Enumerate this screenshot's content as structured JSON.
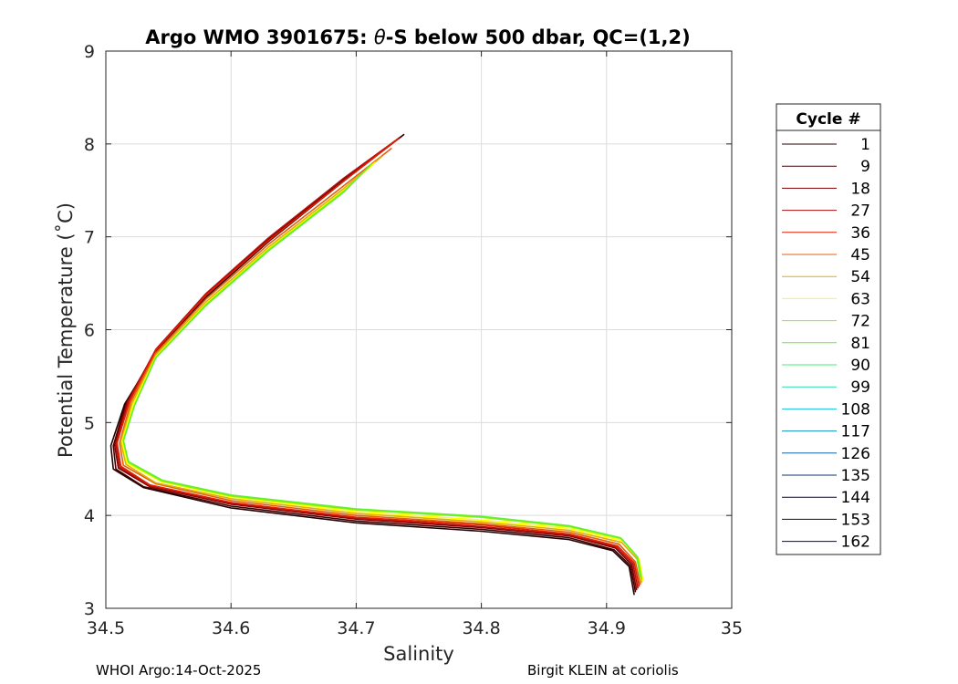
{
  "chart_data": {
    "type": "line",
    "title": "Argo WMO 3901675: θ-S below 500 dbar,  QC=(1,2)",
    "title_parts": {
      "before": "Argo WMO 3901675: ",
      "theta": "θ",
      "after": "-S below 500 dbar,  QC=(1,2)"
    },
    "xlabel": "Salinity",
    "ylabel": "Potential Temperature (˚C)",
    "xlim": [
      34.5,
      35
    ],
    "ylim": [
      3,
      9
    ],
    "xticks": [
      "34.5",
      "34.6",
      "34.7",
      "34.8",
      "34.9",
      "35"
    ],
    "yticks": [
      "3",
      "4",
      "5",
      "6",
      "7",
      "8",
      "9"
    ],
    "grid": true,
    "legend": {
      "title": "Cycle #",
      "placement": "outside-right",
      "entries": [
        "1",
        "9",
        "18",
        "27",
        "36",
        "45",
        "54",
        "63",
        "72",
        "81",
        "90",
        "99",
        "108",
        "117",
        "126",
        "135",
        "144",
        "153",
        "162"
      ],
      "colors": [
        "#200000",
        "#440000",
        "#800000",
        "#b31010",
        "#e02000",
        "#e06010",
        "#e0b000",
        "#ffff00",
        "#90f000",
        "#60f030",
        "#40f070",
        "#20e0b0",
        "#10c0e0",
        "#1090c0",
        "#1060a0",
        "#103070",
        "#100040",
        "#200020",
        "#000080"
      ]
    },
    "series": [
      {
        "name": "1",
        "color": "#200000",
        "x": [
          34.738,
          34.69,
          34.63,
          34.58,
          34.54,
          34.515,
          34.504,
          34.506,
          34.53,
          34.6,
          34.7,
          34.8,
          34.87,
          34.905,
          34.918,
          34.922
        ],
        "y": [
          8.1,
          7.6,
          6.95,
          6.35,
          5.75,
          5.2,
          4.75,
          4.5,
          4.3,
          4.08,
          3.92,
          3.83,
          3.74,
          3.62,
          3.45,
          3.15
        ]
      },
      {
        "name": "9",
        "color": "#440000",
        "x": [
          34.736,
          34.69,
          34.63,
          34.58,
          34.54,
          34.516,
          34.506,
          34.508,
          34.53,
          34.6,
          34.7,
          34.8,
          34.87,
          34.906,
          34.919,
          34.923
        ],
        "y": [
          8.08,
          7.62,
          6.97,
          6.37,
          5.77,
          5.21,
          4.75,
          4.5,
          4.31,
          4.1,
          3.94,
          3.85,
          3.76,
          3.63,
          3.46,
          3.18
        ]
      },
      {
        "name": "18",
        "color": "#800000",
        "x": [
          34.735,
          34.69,
          34.63,
          34.58,
          34.54,
          34.517,
          34.507,
          34.51,
          34.535,
          34.6,
          34.7,
          34.8,
          34.87,
          34.907,
          34.92,
          34.924
        ],
        "y": [
          8.07,
          7.63,
          6.98,
          6.38,
          5.78,
          5.22,
          4.76,
          4.51,
          4.31,
          4.12,
          3.96,
          3.87,
          3.78,
          3.65,
          3.47,
          3.2
        ]
      },
      {
        "name": "27",
        "color": "#b31010",
        "x": [
          34.734,
          34.69,
          34.63,
          34.58,
          34.54,
          34.518,
          34.508,
          34.511,
          34.535,
          34.6,
          34.7,
          34.8,
          34.87,
          34.908,
          34.921,
          34.925
        ],
        "y": [
          8.06,
          7.63,
          6.99,
          6.39,
          5.79,
          5.23,
          4.77,
          4.52,
          4.32,
          4.13,
          3.97,
          3.88,
          3.79,
          3.66,
          3.48,
          3.22
        ]
      },
      {
        "name": "36",
        "color": "#e02000",
        "x": [
          34.733,
          34.69,
          34.63,
          34.58,
          34.54,
          34.519,
          34.509,
          34.512,
          34.535,
          34.6,
          34.7,
          34.8,
          34.87,
          34.909,
          34.922,
          34.926
        ],
        "y": [
          8.05,
          7.6,
          6.96,
          6.37,
          5.78,
          5.23,
          4.78,
          4.53,
          4.33,
          4.14,
          3.98,
          3.9,
          3.8,
          3.67,
          3.49,
          3.24
        ]
      },
      {
        "name": "45",
        "color": "#e06010",
        "x": [
          34.728,
          34.69,
          34.63,
          34.58,
          34.54,
          34.52,
          34.511,
          34.514,
          34.54,
          34.6,
          34.7,
          34.8,
          34.87,
          34.91,
          34.923,
          34.927
        ],
        "y": [
          7.95,
          7.55,
          6.92,
          6.33,
          5.75,
          5.22,
          4.78,
          4.54,
          4.34,
          4.16,
          4.0,
          3.91,
          3.82,
          3.69,
          3.5,
          3.26
        ]
      },
      {
        "name": "54",
        "color": "#e0b000",
        "x": [
          34.72,
          34.69,
          34.63,
          34.58,
          34.54,
          34.521,
          34.512,
          34.516,
          34.54,
          34.6,
          34.7,
          34.8,
          34.87,
          34.912,
          34.925,
          34.928
        ],
        "y": [
          7.86,
          7.52,
          6.89,
          6.3,
          5.73,
          5.21,
          4.79,
          4.55,
          4.35,
          4.18,
          4.02,
          3.93,
          3.84,
          3.71,
          3.52,
          3.28
        ]
      },
      {
        "name": "63",
        "color": "#ffff00",
        "x": [
          34.715,
          34.69,
          34.63,
          34.58,
          34.54,
          34.522,
          34.513,
          34.517,
          34.545,
          34.6,
          34.7,
          34.8,
          34.87,
          34.913,
          34.926,
          34.929
        ],
        "y": [
          7.8,
          7.5,
          6.87,
          6.28,
          5.71,
          5.2,
          4.8,
          4.56,
          4.36,
          4.2,
          4.04,
          3.95,
          3.86,
          3.73,
          3.53,
          3.3
        ]
      },
      {
        "name": "72",
        "color": "#90f000",
        "x": [
          34.712,
          34.69,
          34.63,
          34.58,
          34.54,
          34.523,
          34.514,
          34.518,
          34.545,
          34.6,
          34.7,
          34.8,
          34.87,
          34.912,
          34.925,
          34.928
        ],
        "y": [
          7.78,
          7.49,
          6.86,
          6.27,
          5.7,
          5.19,
          4.8,
          4.57,
          4.37,
          4.21,
          4.06,
          3.98,
          3.88,
          3.75,
          3.55,
          3.32
        ]
      },
      {
        "name": "81",
        "color": "#60f030",
        "x": [
          34.711,
          34.69,
          34.63,
          34.58,
          34.54,
          34.523,
          34.514,
          34.518,
          34.545,
          34.6,
          34.7,
          34.8,
          34.87,
          34.911,
          34.924,
          34.927
        ],
        "y": [
          7.77,
          7.48,
          6.85,
          6.26,
          5.7,
          5.19,
          4.81,
          4.58,
          4.38,
          4.22,
          4.07,
          3.99,
          3.89,
          3.76,
          3.56,
          3.34
        ]
      }
    ]
  },
  "footer": {
    "left": "WHOI Argo:14-Oct-2025",
    "right": "Birgit KLEIN at coriolis"
  }
}
